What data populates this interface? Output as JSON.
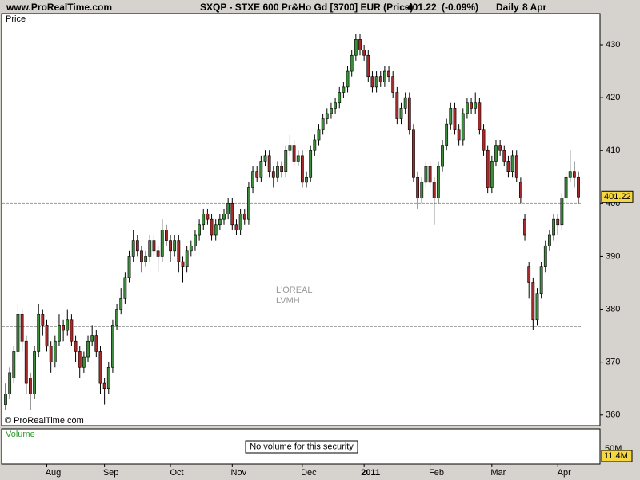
{
  "header": {
    "site": "www.ProRealTime.com",
    "instrument": "SXQP - STXE 600 Pr&Ho Gd [3700] EUR (Price)",
    "change": {
      "value": -0.09,
      "label": "(-0.09%)"
    },
    "period": "Daily",
    "date": "8 Apr"
  },
  "chart_data": {
    "type": "candlestick",
    "panel_label": "Price",
    "copyright": "© ProRealTime.com",
    "securities": [
      "L'OREAL",
      "LVMH"
    ],
    "up_color": "#3c8c3c",
    "down_color": "#a52a2a",
    "ylim": [
      358,
      435.9
    ],
    "yticks": [
      360,
      370,
      380,
      390,
      400,
      410,
      420,
      430
    ],
    "hlines": [
      400,
      376.7
    ],
    "last_price": 401.22,
    "xticks": [
      {
        "value": 10,
        "label": "Aug"
      },
      {
        "value": 24,
        "label": "Sep"
      },
      {
        "value": 40,
        "label": "Oct"
      },
      {
        "value": 55,
        "label": "Nov"
      },
      {
        "value": 72,
        "label": "Dec"
      },
      {
        "value": 87,
        "label": "2011"
      },
      {
        "value": 103,
        "label": "Feb"
      },
      {
        "value": 118,
        "label": "Mar"
      },
      {
        "value": 134,
        "label": "Apr"
      }
    ],
    "candles": [
      [
        362,
        366,
        361,
        364
      ],
      [
        364,
        369,
        363,
        368
      ],
      [
        367,
        373,
        366,
        372
      ],
      [
        372,
        381,
        371,
        379
      ],
      [
        379,
        380,
        372,
        374
      ],
      [
        374,
        375,
        364,
        366
      ],
      [
        367,
        368,
        361,
        364
      ],
      [
        364,
        373,
        363,
        372
      ],
      [
        372,
        381,
        371,
        379
      ],
      [
        379,
        380,
        375,
        377
      ],
      [
        377,
        378,
        372,
        373
      ],
      [
        373,
        374,
        368,
        370
      ],
      [
        370,
        375,
        369,
        374
      ],
      [
        374,
        379,
        373,
        377
      ],
      [
        377,
        378,
        374,
        376
      ],
      [
        376,
        380,
        375,
        378
      ],
      [
        378,
        379,
        373,
        374
      ],
      [
        374,
        375,
        370,
        372
      ],
      [
        372,
        373,
        367,
        369
      ],
      [
        369,
        372,
        368,
        371
      ],
      [
        371,
        375,
        370,
        374
      ],
      [
        374,
        377,
        373,
        375
      ],
      [
        375,
        376,
        371,
        372
      ],
      [
        372,
        373,
        364,
        366
      ],
      [
        366,
        367,
        362,
        365
      ],
      [
        365,
        370,
        364,
        369
      ],
      [
        369,
        378,
        368,
        377
      ],
      [
        377,
        381,
        376,
        380
      ],
      [
        380,
        384,
        379,
        382
      ],
      [
        382,
        387,
        381,
        386
      ],
      [
        386,
        391,
        385,
        390
      ],
      [
        390,
        395,
        389,
        393
      ],
      [
        393,
        394,
        390,
        391
      ],
      [
        391,
        392,
        387,
        389
      ],
      [
        389,
        391,
        388,
        390
      ],
      [
        390,
        394,
        389,
        393
      ],
      [
        393,
        394,
        390,
        391
      ],
      [
        391,
        392,
        387,
        390
      ],
      [
        390,
        397,
        389,
        395
      ],
      [
        395,
        396,
        392,
        393
      ],
      [
        393,
        394,
        389,
        391
      ],
      [
        391,
        394,
        390,
        393
      ],
      [
        393,
        394,
        387,
        389
      ],
      [
        389,
        390,
        385,
        388
      ],
      [
        388,
        392,
        387,
        391
      ],
      [
        391,
        393,
        390,
        392
      ],
      [
        392,
        395,
        391,
        394
      ],
      [
        394,
        397,
        393,
        396
      ],
      [
        396,
        399,
        395,
        398
      ],
      [
        398,
        399,
        396,
        397
      ],
      [
        397,
        398,
        393,
        394
      ],
      [
        394,
        397,
        393,
        396
      ],
      [
        396,
        398,
        395,
        397
      ],
      [
        397,
        399,
        396,
        398
      ],
      [
        398,
        401,
        397,
        400
      ],
      [
        400,
        401,
        395,
        396
      ],
      [
        396,
        397,
        394,
        395
      ],
      [
        395,
        399,
        394,
        398
      ],
      [
        398,
        399,
        396,
        397
      ],
      [
        397,
        404,
        396,
        403
      ],
      [
        403,
        407,
        402,
        406
      ],
      [
        406,
        407,
        404,
        405
      ],
      [
        405,
        409,
        404,
        408
      ],
      [
        408,
        410,
        407,
        409
      ],
      [
        409,
        410,
        405,
        406
      ],
      [
        406,
        407,
        403,
        405
      ],
      [
        405,
        408,
        404,
        407
      ],
      [
        407,
        408,
        405,
        406
      ],
      [
        406,
        411,
        405,
        410
      ],
      [
        410,
        413,
        409,
        411
      ],
      [
        411,
        412,
        407,
        408
      ],
      [
        408,
        410,
        407,
        409
      ],
      [
        409,
        410,
        403,
        404
      ],
      [
        404,
        406,
        403,
        405
      ],
      [
        405,
        411,
        404,
        410
      ],
      [
        410,
        413,
        409,
        412
      ],
      [
        412,
        415,
        411,
        414
      ],
      [
        414,
        417,
        413,
        416
      ],
      [
        416,
        418,
        415,
        417
      ],
      [
        417,
        419,
        416,
        418
      ],
      [
        418,
        420,
        417,
        419
      ],
      [
        419,
        422,
        418,
        421
      ],
      [
        421,
        423,
        420,
        422
      ],
      [
        422,
        426,
        421,
        425
      ],
      [
        425,
        429,
        424,
        428
      ],
      [
        428,
        432,
        427,
        431
      ],
      [
        431,
        432,
        428,
        429
      ],
      [
        429,
        430,
        427,
        428
      ],
      [
        428,
        429,
        423,
        424
      ],
      [
        424,
        425,
        421,
        422
      ],
      [
        422,
        425,
        421,
        424
      ],
      [
        424,
        425,
        422,
        423
      ],
      [
        423,
        426,
        422,
        425
      ],
      [
        425,
        426,
        423,
        424
      ],
      [
        424,
        425,
        420,
        421
      ],
      [
        421,
        422,
        415,
        416
      ],
      [
        416,
        419,
        415,
        418
      ],
      [
        418,
        421,
        417,
        420
      ],
      [
        420,
        421,
        413,
        414
      ],
      [
        414,
        415,
        404,
        405
      ],
      [
        405,
        406,
        399,
        401
      ],
      [
        401,
        405,
        400,
        404
      ],
      [
        404,
        408,
        403,
        407
      ],
      [
        407,
        408,
        403,
        404
      ],
      [
        404,
        405,
        396,
        401
      ],
      [
        401,
        408,
        400,
        407
      ],
      [
        407,
        412,
        406,
        411
      ],
      [
        411,
        416,
        410,
        415
      ],
      [
        415,
        419,
        414,
        418
      ],
      [
        418,
        419,
        413,
        414
      ],
      [
        414,
        415,
        411,
        412
      ],
      [
        412,
        418,
        411,
        417
      ],
      [
        417,
        420,
        416,
        419
      ],
      [
        419,
        420,
        417,
        418
      ],
      [
        418,
        421,
        417,
        419
      ],
      [
        419,
        420,
        413,
        414
      ],
      [
        414,
        415,
        409,
        410
      ],
      [
        410,
        411,
        402,
        403
      ],
      [
        403,
        409,
        402,
        408
      ],
      [
        408,
        412,
        407,
        411
      ],
      [
        411,
        412,
        409,
        410
      ],
      [
        410,
        411,
        407,
        408
      ],
      [
        408,
        409,
        405,
        406
      ],
      [
        406,
        410,
        405,
        409
      ],
      [
        409,
        410,
        404,
        405
      ],
      [
        404,
        405,
        400,
        401
      ],
      [
        397,
        398,
        393,
        394
      ],
      [
        388,
        389,
        382,
        385
      ],
      [
        385,
        386,
        376,
        378
      ],
      [
        378,
        384,
        377,
        383
      ],
      [
        383,
        389,
        382,
        388
      ],
      [
        388,
        393,
        387,
        392
      ],
      [
        392,
        395,
        391,
        394
      ],
      [
        394,
        398,
        393,
        397
      ],
      [
        397,
        398,
        394,
        396
      ],
      [
        396,
        402,
        395,
        401
      ],
      [
        401,
        406,
        400,
        405
      ],
      [
        405,
        410,
        404,
        406
      ],
      [
        406,
        408,
        403,
        405
      ],
      [
        405,
        406,
        400,
        401.22
      ]
    ]
  },
  "volume_panel": {
    "label": "Volume",
    "note": "No volume for this security",
    "yticks": [
      {
        "value": 50000000,
        "label": "50M"
      }
    ],
    "marker": {
      "value": 11400000,
      "label": "11.4M"
    }
  }
}
